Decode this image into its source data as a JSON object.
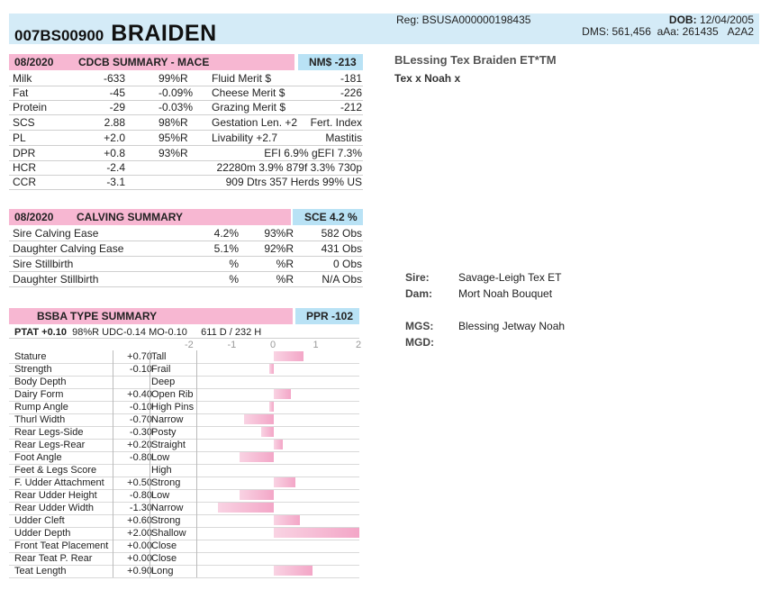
{
  "header": {
    "prefix": "007BS00900",
    "name": "BRAIDEN",
    "reg": "Reg: BSUSA000000198435",
    "dob_label": "DOB:",
    "dob": "12/04/2005",
    "dms": "DMS: 561,456",
    "aaa": "aAa: 261435",
    "code": "A2A2"
  },
  "right": {
    "full_name": "BLessing Tex Braiden ET*TM",
    "parents": "Tex x Noah x",
    "sire_label": "Sire:",
    "sire": "Savage-Leigh Tex ET",
    "dam_label": "Dam:",
    "dam": "Mort Noah Bouquet",
    "mgs_label": "MGS:",
    "mgs": "Blessing Jetway Noah",
    "mgd_label": "MGD:"
  },
  "cdcb": {
    "date": "08/2020",
    "title": "CDCB SUMMARY - MACE",
    "nm": "NM$ -213",
    "rows": [
      [
        "Milk",
        "-633",
        "99%R",
        "Fluid Merit $",
        "-181"
      ],
      [
        "Fat",
        "-45",
        "-0.09%",
        "Cheese Merit $",
        "-226"
      ],
      [
        "Protein",
        "-29",
        "-0.03%",
        "Grazing Merit $",
        "-212"
      ],
      [
        "SCS",
        "2.88",
        "98%R",
        "Gestation Len. +2",
        "Fert. Index"
      ],
      [
        "PL",
        "+2.0",
        "95%R",
        "Livability   +2.7",
        "Mastitis"
      ],
      [
        "DPR",
        "+0.8",
        "93%R",
        "EFI  6.9%  gEFI  7.3%",
        ""
      ],
      [
        "HCR",
        "-2.4",
        "",
        "22280m  3.9%  879f  3.3%  730p",
        ""
      ],
      [
        "CCR",
        "-3.1",
        "",
        "909 Dtrs  357 Herds  99% US",
        ""
      ]
    ]
  },
  "calving": {
    "date": "08/2020",
    "title": "CALVING SUMMARY",
    "sce": "SCE 4.2 %",
    "rows": [
      [
        "Sire Calving Ease",
        "4.2%",
        "93%R",
        "582 Obs"
      ],
      [
        "Daughter Calving Ease",
        "5.1%",
        "92%R",
        "431 Obs"
      ],
      [
        "Sire Stillbirth",
        "%",
        "%R",
        "0 Obs"
      ],
      [
        "Daughter Stillbirth",
        "%",
        "%R",
        "N/A Obs"
      ]
    ]
  },
  "type": {
    "title": "BSBA TYPE SUMMARY",
    "ppr": "PPR -102",
    "ptat": "PTAT +0.10",
    "ptat_rest": "98%R  UDC-0.14  MO-0.10",
    "ptat_tail": "611 D /  232 H",
    "ticks": [
      "-2",
      "-1",
      "0",
      "1",
      "2"
    ],
    "traits": [
      {
        "name": "Stature",
        "val": "+0.70",
        "desc": "Tall",
        "v": 0.7
      },
      {
        "name": "Strength",
        "val": "-0.10",
        "desc": "Frail",
        "v": -0.1
      },
      {
        "name": "Body Depth",
        "val": "",
        "desc": "Deep",
        "v": 0
      },
      {
        "name": "Dairy Form",
        "val": "+0.40",
        "desc": "Open Rib",
        "v": 0.4
      },
      {
        "name": "Rump Angle",
        "val": "-0.10",
        "desc": "High Pins",
        "v": -0.1
      },
      {
        "name": "Thurl Width",
        "val": "-0.70",
        "desc": "Narrow",
        "v": -0.7
      },
      {
        "name": "Rear Legs-Side",
        "val": "-0.30",
        "desc": "Posty",
        "v": -0.3
      },
      {
        "name": "Rear Legs-Rear",
        "val": "+0.20",
        "desc": "Straight",
        "v": 0.2
      },
      {
        "name": "Foot Angle",
        "val": "-0.80",
        "desc": "Low",
        "v": -0.8
      },
      {
        "name": "Feet & Legs Score",
        "val": "",
        "desc": "High",
        "v": 0
      },
      {
        "name": "F. Udder Attachment",
        "val": "+0.50",
        "desc": "Strong",
        "v": 0.5
      },
      {
        "name": "Rear Udder Height",
        "val": "-0.80",
        "desc": "Low",
        "v": -0.8
      },
      {
        "name": "Rear Udder Width",
        "val": "-1.30",
        "desc": "Narrow",
        "v": -1.3
      },
      {
        "name": "Udder Cleft",
        "val": "+0.60",
        "desc": "Strong",
        "v": 0.6
      },
      {
        "name": "Udder Depth",
        "val": "+2.00",
        "desc": "Shallow",
        "v": 2.0
      },
      {
        "name": "Front Teat Placement",
        "val": "+0.00",
        "desc": "Close",
        "v": 0
      },
      {
        "name": "Rear Teat P. Rear",
        "val": "+0.00",
        "desc": "Close",
        "v": 0
      },
      {
        "name": "Teat Length",
        "val": "+0.90",
        "desc": "Long",
        "v": 0.9
      }
    ]
  }
}
